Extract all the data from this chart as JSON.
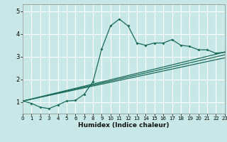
{
  "title": "",
  "xlabel": "Humidex (Indice chaleur)",
  "ylabel": "",
  "bg_color": "#c8e8e8",
  "grid_color": "#a8d8d8",
  "line_color": "#1a6b5a",
  "xlim": [
    0,
    23
  ],
  "ylim": [
    0.5,
    5.3
  ],
  "yticks": [
    1,
    2,
    3,
    4,
    5
  ],
  "xticks": [
    0,
    1,
    2,
    3,
    4,
    5,
    6,
    7,
    8,
    9,
    10,
    11,
    12,
    13,
    14,
    15,
    16,
    17,
    18,
    19,
    20,
    21,
    22,
    23
  ],
  "series1_x": [
    0,
    1,
    2,
    3,
    4,
    5,
    6,
    7,
    8,
    9,
    10,
    11,
    12,
    13,
    14,
    15,
    16,
    17,
    18,
    19,
    20,
    21,
    22,
    23
  ],
  "series1_y": [
    1.05,
    0.95,
    0.78,
    0.72,
    0.88,
    1.05,
    1.08,
    1.35,
    1.9,
    3.35,
    4.35,
    4.65,
    4.35,
    3.6,
    3.5,
    3.6,
    3.6,
    3.75,
    3.5,
    3.45,
    3.3,
    3.3,
    3.15,
    3.2
  ],
  "series2_x": [
    0,
    23
  ],
  "series2_y": [
    1.05,
    3.2
  ],
  "series3_x": [
    0,
    23
  ],
  "series3_y": [
    1.05,
    2.95
  ],
  "series4_x": [
    0,
    23
  ],
  "series4_y": [
    1.05,
    3.08
  ]
}
